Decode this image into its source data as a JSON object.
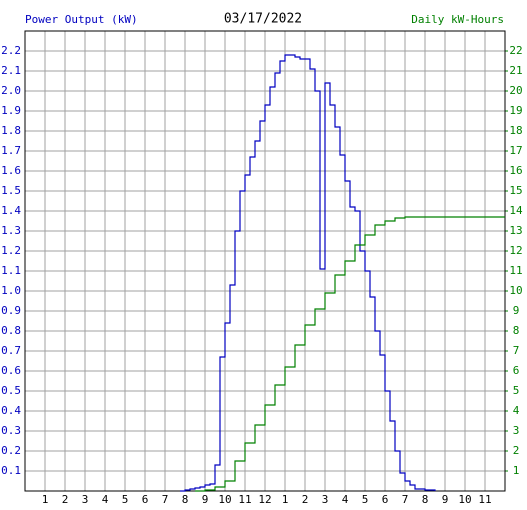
{
  "chart_data": {
    "type": "line",
    "step": true,
    "title": "03/17/2022",
    "y_label": "Power Output (kW)",
    "y2_label": "Daily kW-Hours",
    "xlim": [
      0,
      24
    ],
    "ylim": [
      0,
      2.3
    ],
    "y2lim": [
      0,
      23
    ],
    "grid": true,
    "xticks": [
      1,
      2,
      3,
      4,
      5,
      6,
      7,
      8,
      9,
      10,
      11,
      12,
      {
        "value": 13,
        "label": "1"
      },
      {
        "value": 14,
        "label": "2"
      },
      {
        "value": 15,
        "label": "3"
      },
      {
        "value": 16,
        "label": "4"
      },
      {
        "value": 17,
        "label": "5"
      },
      {
        "value": 18,
        "label": "6"
      },
      {
        "value": 19,
        "label": "7"
      },
      {
        "value": 20,
        "label": "8"
      },
      {
        "value": 21,
        "label": "9"
      },
      {
        "value": 22,
        "label": "10"
      },
      {
        "value": 23,
        "label": "11"
      }
    ],
    "yticks": [
      0.1,
      0.2,
      0.3,
      0.4,
      0.5,
      0.6,
      0.7,
      0.8,
      0.9,
      {
        "value": 1,
        "label": "1.0"
      },
      1.1,
      1.2,
      1.3,
      1.4,
      1.5,
      1.6,
      1.7,
      1.8,
      1.9,
      {
        "value": 2,
        "label": "2.0"
      },
      2.1,
      2.2
    ],
    "y2ticks": [
      1,
      2,
      3,
      4,
      5,
      6,
      7,
      8,
      9,
      10,
      11,
      12,
      13,
      14,
      15,
      16,
      17,
      18,
      19,
      20,
      21,
      22
    ],
    "series": [
      {
        "name": "Power Output (kW)",
        "color": "#0000c0",
        "x": [
          7.75,
          8,
          8.25,
          8.5,
          8.75,
          9,
          9.25,
          9.5,
          9.75,
          10,
          10.25,
          10.5,
          10.75,
          11,
          11.25,
          11.5,
          11.75,
          12,
          12.25,
          12.5,
          12.75,
          13,
          13.25,
          13.5,
          13.75,
          14,
          14.25,
          14.5,
          14.75,
          15,
          15.25,
          15.5,
          15.75,
          16,
          16.25,
          16.5,
          16.75,
          17,
          17.25,
          17.5,
          17.75,
          18,
          18.25,
          18.5,
          18.75,
          19,
          19.25,
          19.5,
          19.75,
          20,
          20.5
        ],
        "values": [
          0,
          0.005,
          0.01,
          0.015,
          0.02,
          0.03,
          0.035,
          0.13,
          0.67,
          0.84,
          1.03,
          1.3,
          1.5,
          1.58,
          1.67,
          1.75,
          1.85,
          1.93,
          2.02,
          2.09,
          2.15,
          2.18,
          2.18,
          2.17,
          2.16,
          2.16,
          2.11,
          2.0,
          1.11,
          2.04,
          1.93,
          1.82,
          1.68,
          1.55,
          1.42,
          1.4,
          1.2,
          1.1,
          0.97,
          0.8,
          0.68,
          0.5,
          0.35,
          0.2,
          0.09,
          0.05,
          0.03,
          0.01,
          0.01,
          0.005,
          0
        ]
      },
      {
        "name": "Daily kW-Hours",
        "color": "#008000",
        "axis": "y2",
        "x": [
          8.5,
          9,
          9.5,
          10,
          10.5,
          11,
          11.5,
          12,
          12.5,
          13,
          13.5,
          14,
          14.5,
          15,
          15.5,
          16,
          16.5,
          17,
          17.5,
          18,
          18.5,
          19,
          24
        ],
        "values": [
          0,
          0.05,
          0.2,
          0.5,
          1.5,
          2.4,
          3.3,
          4.3,
          5.3,
          6.2,
          7.3,
          8.3,
          9.1,
          9.9,
          10.8,
          11.5,
          12.3,
          12.8,
          13.3,
          13.5,
          13.65,
          13.7,
          13.7
        ]
      }
    ]
  }
}
